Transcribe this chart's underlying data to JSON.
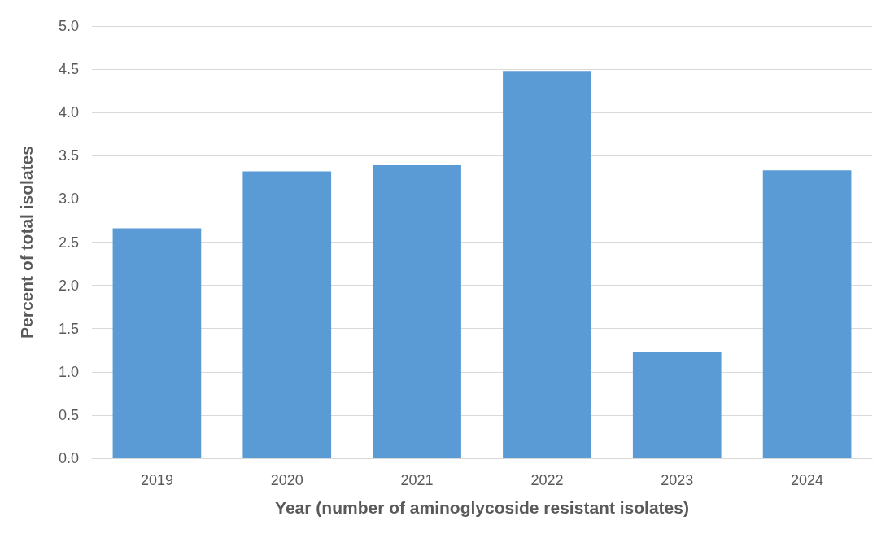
{
  "chart_data": {
    "type": "bar",
    "xlabel": "Year (number of aminoglycoside resistant isolates)",
    "ylabel": "Percent of total isolates",
    "categories": [
      "2019",
      "2020",
      "2021",
      "2022",
      "2023",
      "2024"
    ],
    "values": [
      2.66,
      3.32,
      3.39,
      4.48,
      1.23,
      3.33
    ],
    "color": "#5b9bd5",
    "ylim": [
      0,
      5
    ],
    "yticks": [
      {
        "value": 0,
        "label": "0.0"
      },
      {
        "value": 0.5,
        "label": "0.5"
      },
      {
        "value": 1,
        "label": "1.0"
      },
      {
        "value": 1.5,
        "label": "1.5"
      },
      {
        "value": 2,
        "label": "2.0"
      },
      {
        "value": 2.5,
        "label": "2.5"
      },
      {
        "value": 3,
        "label": "3.0"
      },
      {
        "value": 3.5,
        "label": "3.5"
      },
      {
        "value": 4,
        "label": "4.0"
      },
      {
        "value": 4.5,
        "label": "4.5"
      },
      {
        "value": 5,
        "label": "5.0"
      }
    ],
    "grid": true
  }
}
